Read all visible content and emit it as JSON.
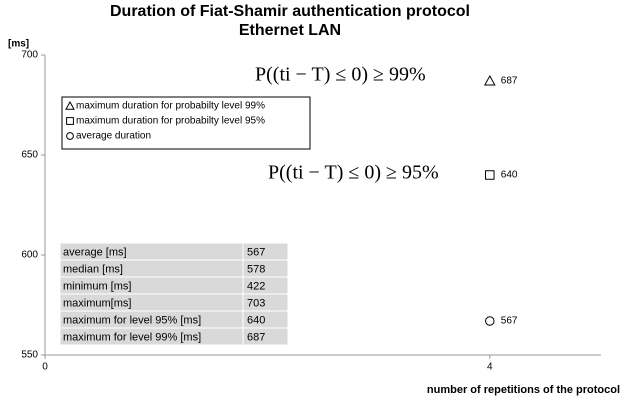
{
  "chart_data": {
    "type": "scatter",
    "title": "Duration of Fiat-Shamir authentication protocol",
    "subtitle": "Ethernet LAN",
    "ylabel": "[ms]",
    "xlabel": "number of repetitions of the protocol",
    "xlim": [
      0,
      5
    ],
    "xticks": [
      0,
      4
    ],
    "ylim": [
      550,
      700
    ],
    "yticks": [
      550,
      600,
      650,
      700
    ],
    "series": [
      {
        "name": "maximum duration for probabilty level 99%",
        "marker": "triangle",
        "color": "#000000",
        "x": [
          4
        ],
        "values": [
          687
        ]
      },
      {
        "name": "maximum duration for probabilty level 95%",
        "marker": "square",
        "color": "#000000",
        "x": [
          4
        ],
        "values": [
          640
        ]
      },
      {
        "name": "average duration",
        "marker": "circle",
        "color": "#000000",
        "x": [
          4
        ],
        "values": [
          567
        ]
      }
    ],
    "annotations": [
      "P((ti − T) ≤ 0) ≥ 99%",
      "P((ti − T) ≤ 0) ≥ 95%"
    ],
    "table": {
      "rows": [
        [
          "average [ms]",
          567
        ],
        [
          "median [ms]",
          578
        ],
        [
          "minimum [ms]",
          422
        ],
        [
          "maximum[ms]",
          703
        ],
        [
          "maximum for level 95% [ms]",
          640
        ],
        [
          "maximum for level 99% [ms]",
          687
        ]
      ]
    }
  }
}
